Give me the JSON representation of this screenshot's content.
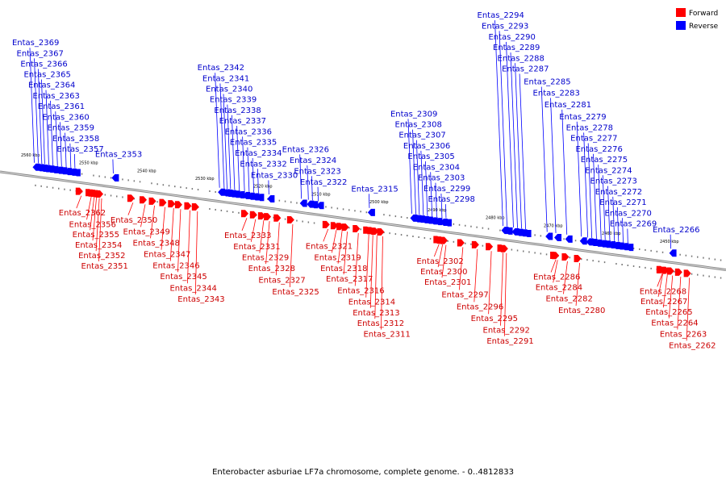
{
  "title": "Enterobacter asburiae LF7a chromosome, complete genome. - 0..4812833",
  "legend": [
    {
      "label": "Forward",
      "color": "#ff0000"
    },
    {
      "label": "Reverse",
      "color": "#0000ff"
    }
  ],
  "colors": {
    "forward": "#ff0000",
    "reverse": "#0000ff",
    "backbone": "#888888"
  },
  "ticks": [
    "2560 kbp",
    "2550 kbp",
    "2540 kbp",
    "2530 kbp",
    "2520 kbp",
    "2510 kbp",
    "2500 kbp",
    "2490 kbp",
    "2480 kbp",
    "2470 kbp",
    "2460 kbp",
    "2450 kbp"
  ],
  "reverse_genes": [
    {
      "name": "Entas_2365",
      "pos": 2557.3
    },
    {
      "name": "Entas_2364",
      "pos": 2556.6
    },
    {
      "name": "Entas_2363",
      "pos": 2555.9
    },
    {
      "name": "Entas_2361",
      "pos": 2555.1
    },
    {
      "name": "Entas_2360",
      "pos": 2554.4
    },
    {
      "name": "Entas_2369",
      "pos": 2559.1
    },
    {
      "name": "Entas_2367",
      "pos": 2558.4
    },
    {
      "name": "Entas_2359",
      "pos": 2553.6
    },
    {
      "name": "Entas_2366",
      "pos": 2557.8
    },
    {
      "name": "Entas_2358",
      "pos": 2552.8
    },
    {
      "name": "Entas_2357",
      "pos": 2552.1
    },
    {
      "name": "Entas_2353",
      "pos": 2545.5
    },
    {
      "name": "Entas_2341",
      "pos": 2526.4
    },
    {
      "name": "Entas_2340",
      "pos": 2525.9
    },
    {
      "name": "Entas_2339",
      "pos": 2525.3
    },
    {
      "name": "Entas_2338",
      "pos": 2524.6
    },
    {
      "name": "Entas_2337",
      "pos": 2523.8
    },
    {
      "name": "Entas_2336",
      "pos": 2522.9
    },
    {
      "name": "Entas_2335",
      "pos": 2522.1
    },
    {
      "name": "Entas_2334",
      "pos": 2521.3
    },
    {
      "name": "Entas_2332",
      "pos": 2520.5
    },
    {
      "name": "Entas_2330",
      "pos": 2518.7
    },
    {
      "name": "Entas_2342",
      "pos": 2527.2
    },
    {
      "name": "Entas_2326",
      "pos": 2513.1
    },
    {
      "name": "Entas_2324",
      "pos": 2511.9
    },
    {
      "name": "Entas_2322",
      "pos": 2510.2
    },
    {
      "name": "Entas_2323",
      "pos": 2511.2
    },
    {
      "name": "Entas_2315",
      "pos": 2501.4
    },
    {
      "name": "Entas_2308",
      "pos": 2493.4
    },
    {
      "name": "Entas_2307",
      "pos": 2492.8
    },
    {
      "name": "Entas_2306",
      "pos": 2492.1
    },
    {
      "name": "Entas_2305",
      "pos": 2491.4
    },
    {
      "name": "Entas_2304",
      "pos": 2490.6
    },
    {
      "name": "Entas_2303",
      "pos": 2489.8
    },
    {
      "name": "Entas_2299",
      "pos": 2488.9
    },
    {
      "name": "Entas_2298",
      "pos": 2488.2
    },
    {
      "name": "Entas_2309",
      "pos": 2494.1
    },
    {
      "name": "Entas_2290",
      "pos": 2476.6
    },
    {
      "name": "Entas_2289",
      "pos": 2475.9
    },
    {
      "name": "Entas_2293",
      "pos": 2477.7
    },
    {
      "name": "Entas_2288",
      "pos": 2475.2
    },
    {
      "name": "Entas_2287",
      "pos": 2474.5
    },
    {
      "name": "Entas_2294",
      "pos": 2478.4
    },
    {
      "name": "Entas_2285",
      "pos": 2470.8
    },
    {
      "name": "Entas_2283",
      "pos": 2469.3
    },
    {
      "name": "Entas_2281",
      "pos": 2467.4
    },
    {
      "name": "Entas_2279",
      "pos": 2464.9
    },
    {
      "name": "Entas_2278",
      "pos": 2463.8
    },
    {
      "name": "Entas_2277",
      "pos": 2463.1
    },
    {
      "name": "Entas_2276",
      "pos": 2462.3
    },
    {
      "name": "Entas_2275",
      "pos": 2461.5
    },
    {
      "name": "Entas_2274",
      "pos": 2460.8
    },
    {
      "name": "Entas_2273",
      "pos": 2460.0
    },
    {
      "name": "Entas_2272",
      "pos": 2459.2
    },
    {
      "name": "Entas_2271",
      "pos": 2458.5
    },
    {
      "name": "Entas_2270",
      "pos": 2457.7
    },
    {
      "name": "Entas_2269",
      "pos": 2456.9
    },
    {
      "name": "Entas_2266",
      "pos": 2449.5
    }
  ],
  "forward_genes": [
    {
      "name": "Entas_2362",
      "pos": 2551.0
    },
    {
      "name": "Entas_2351",
      "pos": 2547.5
    },
    {
      "name": "Entas_2352",
      "pos": 2547.9
    },
    {
      "name": "Entas_2354",
      "pos": 2548.4
    },
    {
      "name": "Entas_2355",
      "pos": 2548.8
    },
    {
      "name": "Entas_2356",
      "pos": 2549.3
    },
    {
      "name": "Entas_2343",
      "pos": 2531.0
    },
    {
      "name": "Entas_2344",
      "pos": 2532.3
    },
    {
      "name": "Entas_2345",
      "pos": 2533.9
    },
    {
      "name": "Entas_2346",
      "pos": 2535.1
    },
    {
      "name": "Entas_2347",
      "pos": 2536.6
    },
    {
      "name": "Entas_2348",
      "pos": 2538.4
    },
    {
      "name": "Entas_2349",
      "pos": 2540.0
    },
    {
      "name": "Entas_2350",
      "pos": 2542.1
    },
    {
      "name": "Entas_2331",
      "pos": 2521.0
    },
    {
      "name": "Entas_2325",
      "pos": 2514.6
    },
    {
      "name": "Entas_2327",
      "pos": 2516.9
    },
    {
      "name": "Entas_2328",
      "pos": 2518.6
    },
    {
      "name": "Entas_2329",
      "pos": 2519.6
    },
    {
      "name": "Entas_2333",
      "pos": 2522.5
    },
    {
      "name": "Entas_2317",
      "pos": 2505.2
    },
    {
      "name": "Entas_2319",
      "pos": 2507.1
    },
    {
      "name": "Entas_2321",
      "pos": 2508.5
    },
    {
      "name": "Entas_2311",
      "pos": 2499.1
    },
    {
      "name": "Entas_2312",
      "pos": 2500.1
    },
    {
      "name": "Entas_2313",
      "pos": 2500.8
    },
    {
      "name": "Entas_2314",
      "pos": 2501.5
    },
    {
      "name": "Entas_2316",
      "pos": 2503.3
    },
    {
      "name": "Entas_2318",
      "pos": 2506.1
    },
    {
      "name": "Entas_2301",
      "pos": 2488.2
    },
    {
      "name": "Entas_2297",
      "pos": 2485.3
    },
    {
      "name": "Entas_2300",
      "pos": 2488.8
    },
    {
      "name": "Entas_2295",
      "pos": 2480.4
    },
    {
      "name": "Entas_2296",
      "pos": 2482.8
    },
    {
      "name": "Entas_2302",
      "pos": 2489.4
    },
    {
      "name": "Entas_2291",
      "pos": 2477.8
    },
    {
      "name": "Entas_2292",
      "pos": 2478.4
    },
    {
      "name": "Entas_2286",
      "pos": 2469.3
    },
    {
      "name": "Entas_2282",
      "pos": 2467.3
    },
    {
      "name": "Entas_2284",
      "pos": 2469.0
    },
    {
      "name": "Entas_2280",
      "pos": 2465.2
    },
    {
      "name": "Entas_2268",
      "pos": 2451.0
    },
    {
      "name": "Entas_2262",
      "pos": 2446.3
    },
    {
      "name": "Entas_2263",
      "pos": 2447.8
    },
    {
      "name": "Entas_2264",
      "pos": 2449.2
    },
    {
      "name": "Entas_2265",
      "pos": 2450.1
    },
    {
      "name": "Entas_2267",
      "pos": 2450.9
    }
  ]
}
